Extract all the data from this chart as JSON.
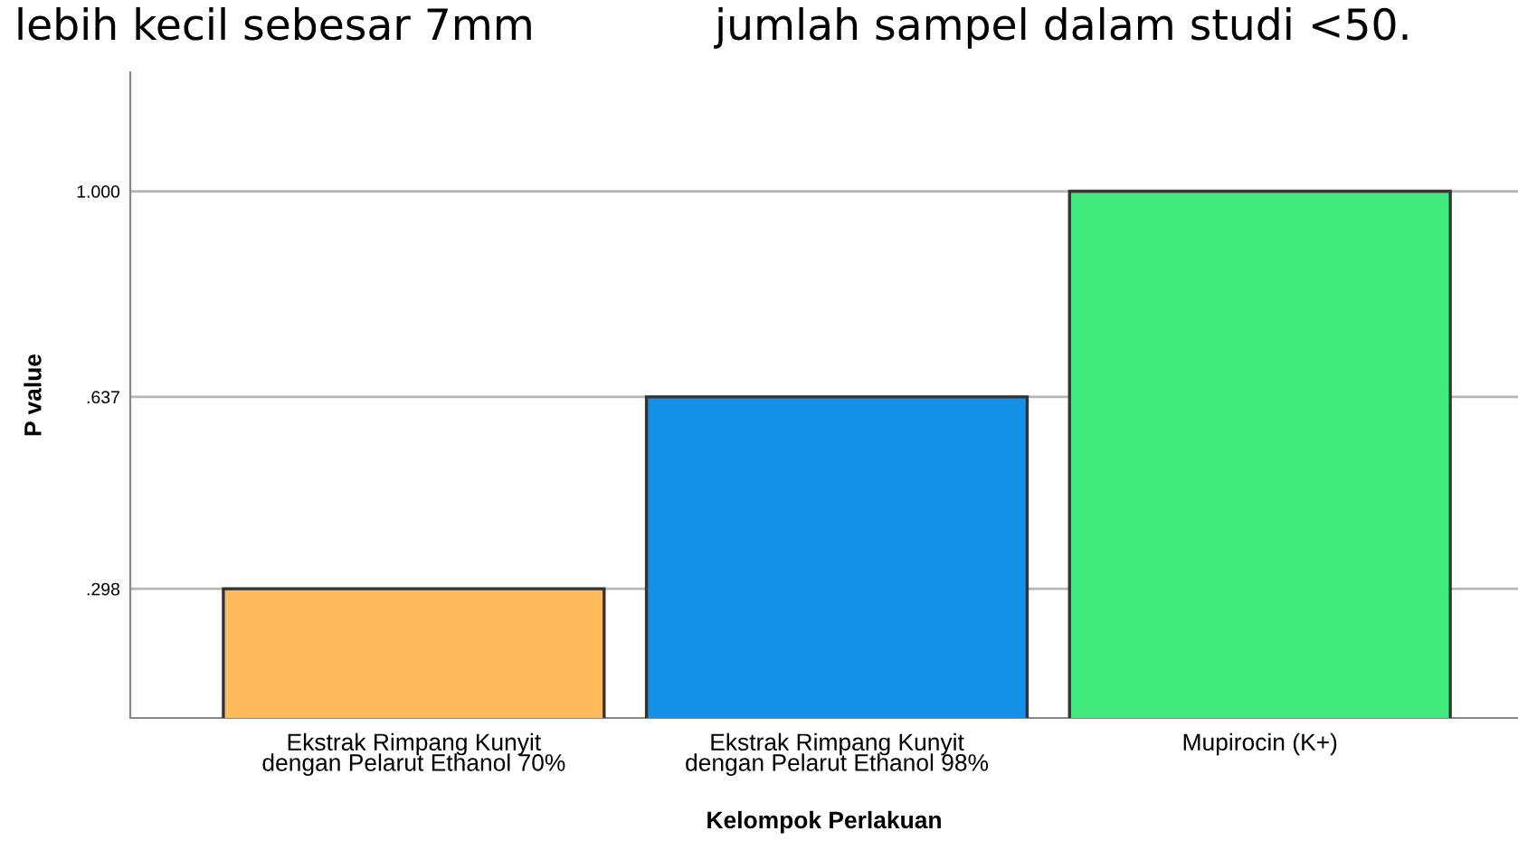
{
  "chart_data": {
    "type": "bar",
    "xlabel": "Kelompok Perlakuan",
    "ylabel": "P value",
    "categories": [
      "Ekstrak Rimpang Kunyit\ndengan Pelarut Ethanol 70%",
      "Ekstrak Rimpang Kunyit\ndengan Pelarut Ethanol 98%",
      "Mupirocin (K+)"
    ],
    "values": [
      0.298,
      0.637,
      1.0
    ],
    "colors": [
      "#fdb95a",
      "#1490e6",
      "#42ea7e"
    ],
    "ylim": [
      0.07,
      1.21
    ],
    "yticks": [
      {
        "value": 0.298,
        "label": ".298"
      },
      {
        "value": 0.637,
        "label": ".637"
      },
      {
        "value": 1.0,
        "label": "1.000"
      }
    ],
    "grid": "y",
    "annotations": [
      "lebih kecil sebesar 7mm",
      "jumlah sampel dalam studi <50."
    ]
  }
}
